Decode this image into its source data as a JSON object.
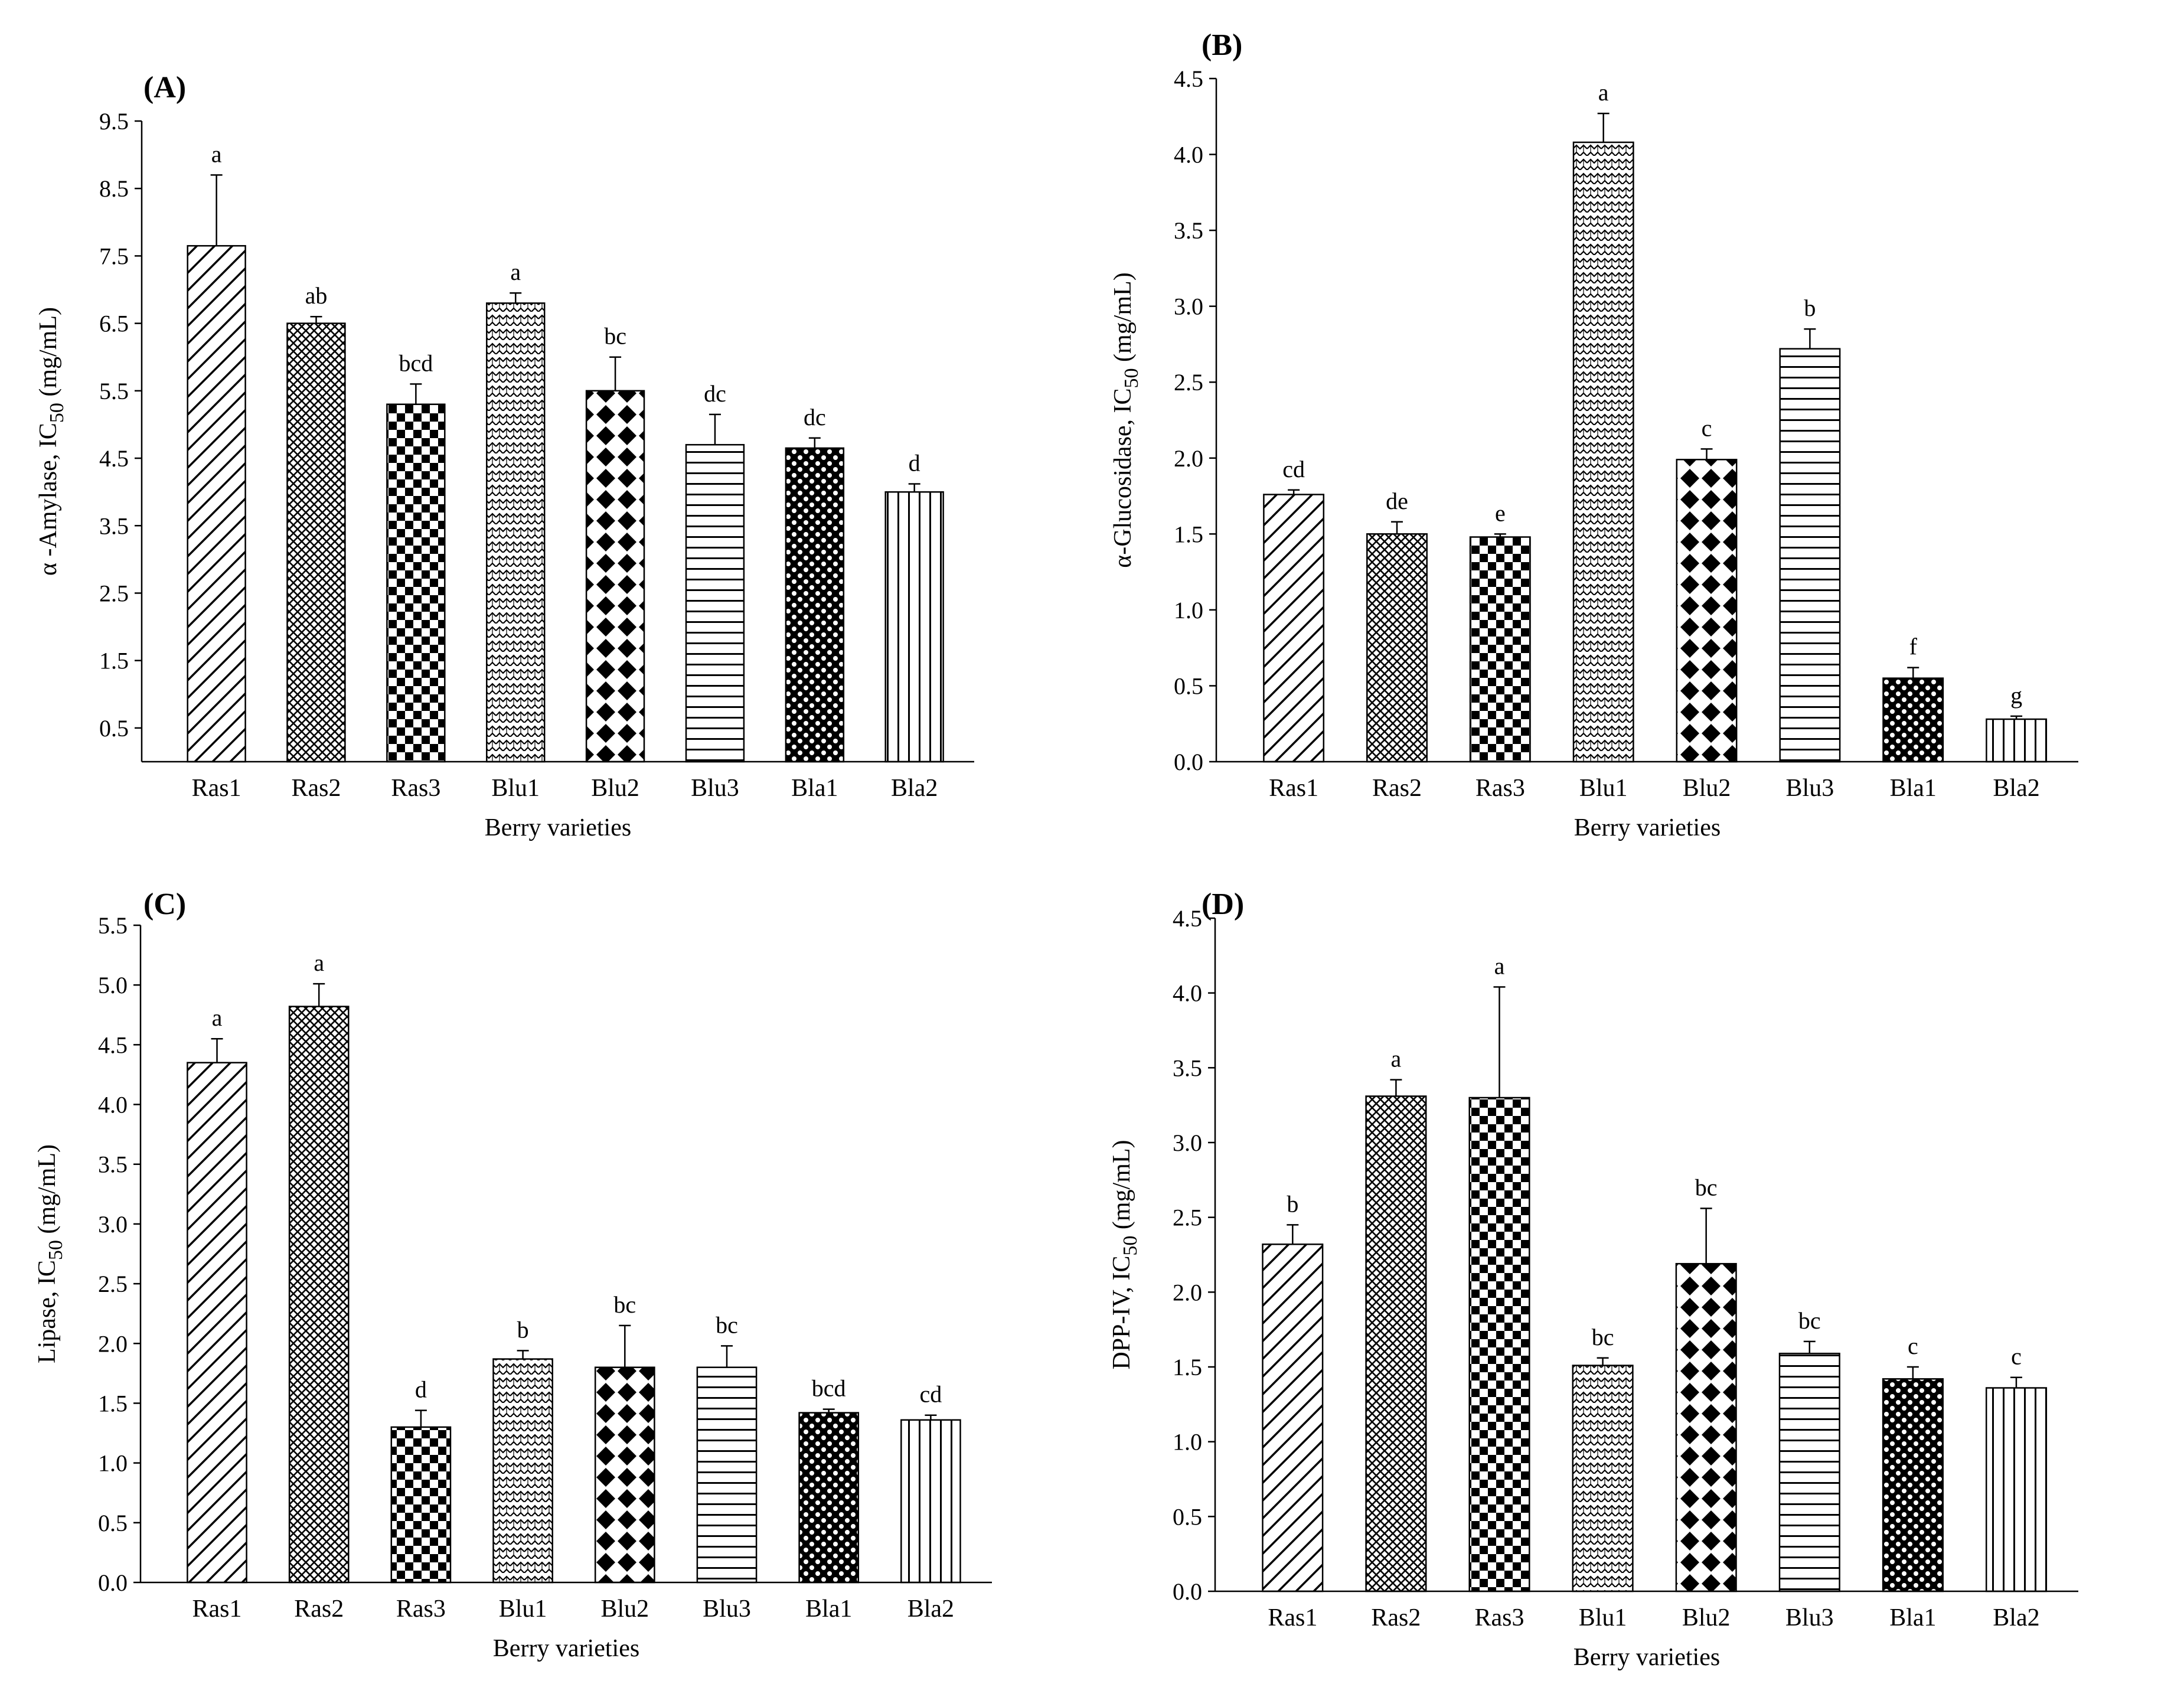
{
  "figure": {
    "xlabel_common": "Berry varieties",
    "categories": [
      "Ras1",
      "Ras2",
      "Ras3",
      "Blu1",
      "Blu2",
      "Blu3",
      "Bla1",
      "Bla2"
    ],
    "bar_patterns": [
      "diag",
      "crosshatch",
      "checker",
      "zigzag",
      "diamond",
      "hlines",
      "dotgrid",
      "vlines"
    ]
  },
  "chart_data": [
    {
      "type": "bar",
      "panel": "(A)",
      "ylabel_prefix": "α -Amylase, IC",
      "ylabel_sub": "50",
      "ylabel_suffix": " (mg/mL)",
      "xlabel": "Berry varieties",
      "ylim": [
        0,
        9.5
      ],
      "yticks": [
        0.5,
        1.5,
        2.5,
        3.5,
        4.5,
        5.5,
        6.5,
        7.5,
        8.5,
        9.5
      ],
      "tick_format": 1,
      "categories": [
        "Ras1",
        "Ras2",
        "Ras3",
        "Blu1",
        "Blu2",
        "Blu3",
        "Bla1",
        "Bla2"
      ],
      "values": [
        7.65,
        6.5,
        5.3,
        6.8,
        5.5,
        4.7,
        4.65,
        4.0
      ],
      "errors": [
        1.05,
        0.1,
        0.3,
        0.15,
        0.5,
        0.45,
        0.15,
        0.12
      ],
      "letters": [
        "a",
        "ab",
        "bcd",
        "a",
        "bc",
        "dc",
        "dc",
        "d"
      ]
    },
    {
      "type": "bar",
      "panel": "(B)",
      "ylabel_prefix": "α-Glucosidase, IC",
      "ylabel_sub": "50",
      "ylabel_suffix": " (mg/mL)",
      "xlabel": "Berry varieties",
      "ylim": [
        0,
        4.5
      ],
      "yticks": [
        0.0,
        0.5,
        1.0,
        1.5,
        2.0,
        2.5,
        3.0,
        3.5,
        4.0,
        4.5
      ],
      "tick_format": 1,
      "categories": [
        "Ras1",
        "Ras2",
        "Ras3",
        "Blu1",
        "Blu2",
        "Blu3",
        "Bla1",
        "Bla2"
      ],
      "values": [
        1.76,
        1.5,
        1.48,
        4.08,
        1.99,
        2.72,
        0.55,
        0.28
      ],
      "errors": [
        0.03,
        0.08,
        0.02,
        0.19,
        0.07,
        0.13,
        0.07,
        0.02
      ],
      "letters": [
        "cd",
        "de",
        "e",
        "a",
        "c",
        "b",
        "f",
        "g"
      ]
    },
    {
      "type": "bar",
      "panel": "(C)",
      "ylabel_prefix": "Lipase, IC",
      "ylabel_sub": "50",
      "ylabel_suffix": " (mg/mL)",
      "xlabel": "Berry varieties",
      "ylim": [
        0,
        5.5
      ],
      "yticks": [
        0.0,
        0.5,
        1.0,
        1.5,
        2.0,
        2.5,
        3.0,
        3.5,
        4.0,
        4.5,
        5.0,
        5.5
      ],
      "tick_format": 1,
      "categories": [
        "Ras1",
        "Ras2",
        "Ras3",
        "Blu1",
        "Blu2",
        "Blu3",
        "Bla1",
        "Bla2"
      ],
      "values": [
        4.35,
        4.82,
        1.3,
        1.87,
        1.8,
        1.8,
        1.42,
        1.36
      ],
      "errors": [
        0.2,
        0.19,
        0.14,
        0.07,
        0.35,
        0.18,
        0.03,
        0.04
      ],
      "letters": [
        "a",
        "a",
        "d",
        "b",
        "bc",
        "bc",
        "bcd",
        "cd"
      ]
    },
    {
      "type": "bar",
      "panel": "(D)",
      "ylabel_prefix": "DPP-IV, IC",
      "ylabel_sub": "50",
      "ylabel_suffix": " (mg/mL)",
      "xlabel": "Berry varieties",
      "ylim": [
        0,
        4.5
      ],
      "yticks": [
        0.0,
        0.5,
        1.0,
        1.5,
        2.0,
        2.5,
        3.0,
        3.5,
        4.0,
        4.5
      ],
      "tick_format": 1,
      "categories": [
        "Ras1",
        "Ras2",
        "Ras3",
        "Blu1",
        "Blu2",
        "Blu3",
        "Bla1",
        "Bla2"
      ],
      "values": [
        2.32,
        3.31,
        3.3,
        1.51,
        2.19,
        1.59,
        1.42,
        1.36
      ],
      "errors": [
        0.13,
        0.11,
        0.74,
        0.05,
        0.37,
        0.08,
        0.08,
        0.07
      ],
      "letters": [
        "b",
        "a",
        "a",
        "bc",
        "bc",
        "bc",
        "c",
        "c"
      ]
    }
  ]
}
